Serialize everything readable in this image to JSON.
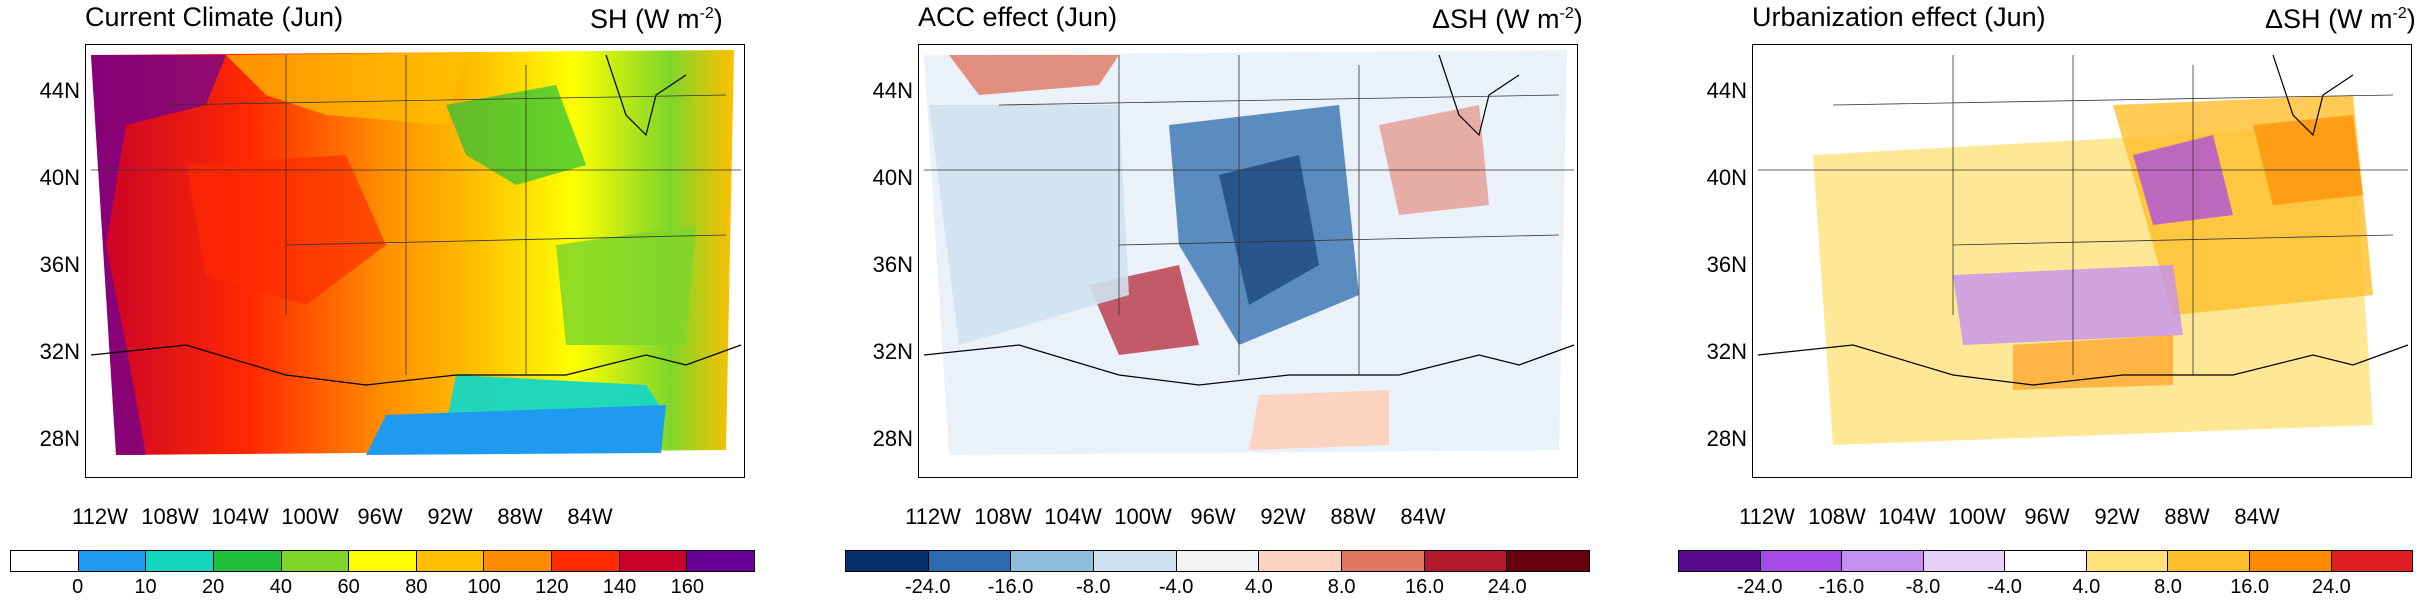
{
  "panels": [
    {
      "title": "Current Climate (Jun)",
      "var_label": "SH",
      "units_prefix": "(W m",
      "units_exp": "-2",
      "units_suffix": ")",
      "colorbar": {
        "colors": [
          "#ffffff",
          "#1e9bf0",
          "#16d6c2",
          "#22c03a",
          "#7fd62a",
          "#ffff00",
          "#ffc000",
          "#ff8c00",
          "#ff2a00",
          "#c8002a",
          "#6a009a"
        ],
        "labels": [
          "0",
          "10",
          "20",
          "40",
          "60",
          "80",
          "100",
          "120",
          "140",
          "160"
        ]
      }
    },
    {
      "title": "ACC effect (Jun)",
      "var_label": "ΔSH",
      "units_prefix": "(W m",
      "units_exp": "-2",
      "units_suffix": ")",
      "colorbar": {
        "colors": [
          "#08306b",
          "#2a6aae",
          "#8fbedc",
          "#cfe1f0",
          "#f2f2f2",
          "#fcd3c1",
          "#e07560",
          "#b01a2a",
          "#67000d"
        ],
        "labels": [
          "-24.0",
          "-16.0",
          "-8.0",
          "-4.0",
          "4.0",
          "8.0",
          "16.0",
          "24.0"
        ]
      }
    },
    {
      "title": "Urbanization effect (Jun)",
      "var_label": "ΔSH",
      "units_prefix": "(W m",
      "units_exp": "-2",
      "units_suffix": ")",
      "colorbar": {
        "colors": [
          "#5a0a8c",
          "#a64ae8",
          "#c490f0",
          "#e6d0f8",
          "#ffffff",
          "#ffe27a",
          "#ffbe2a",
          "#ff8a00",
          "#e02020"
        ],
        "labels": [
          "-24.0",
          "-16.0",
          "-8.0",
          "-4.0",
          "4.0",
          "8.0",
          "16.0",
          "24.0"
        ]
      }
    }
  ],
  "lat_ticks": [
    "44N",
    "40N",
    "36N",
    "32N",
    "28N"
  ],
  "lon_ticks": [
    "112W",
    "108W",
    "104W",
    "100W",
    "96W",
    "92W",
    "88W",
    "84W"
  ]
}
